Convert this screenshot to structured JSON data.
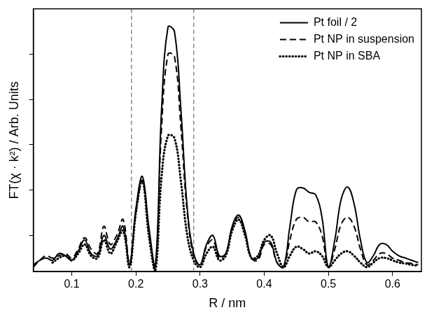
{
  "chart_data": {
    "type": "line",
    "x_label": "R / nm",
    "y_label": "FT(χ · k²) / Arb. Units",
    "xlim": [
      0.04,
      0.645
    ],
    "xticks": [
      0.1,
      0.2,
      0.3,
      0.4,
      0.5,
      0.6
    ],
    "ylim": [
      0.2,
      6
    ],
    "yticks": [
      1,
      2,
      3,
      4,
      5
    ],
    "tick_labels": "x",
    "grid": false,
    "legend": "upper right",
    "vlines": [
      0.193,
      0.29
    ],
    "x": [
      0.04,
      0.05,
      0.06,
      0.07,
      0.08,
      0.09,
      0.1,
      0.11,
      0.12,
      0.13,
      0.14,
      0.15,
      0.16,
      0.17,
      0.18,
      0.19,
      0.2,
      0.21,
      0.22,
      0.23,
      0.24,
      0.25,
      0.26,
      0.27,
      0.28,
      0.29,
      0.3,
      0.31,
      0.32,
      0.33,
      0.34,
      0.35,
      0.36,
      0.37,
      0.38,
      0.39,
      0.4,
      0.41,
      0.42,
      0.43,
      0.44,
      0.45,
      0.46,
      0.47,
      0.48,
      0.49,
      0.5,
      0.51,
      0.52,
      0.53,
      0.54,
      0.55,
      0.56,
      0.57,
      0.58,
      0.59,
      0.6,
      0.61,
      0.62,
      0.63,
      0.64
    ],
    "series": [
      {
        "name": "Pt foil / 2",
        "color": "#000000",
        "line_style": "solid",
        "values": [
          0.35,
          0.45,
          0.5,
          0.45,
          0.6,
          0.55,
          0.45,
          0.65,
          0.9,
          0.6,
          0.55,
          1.0,
          0.7,
          0.9,
          1.2,
          0.35,
          1.6,
          2.3,
          1.2,
          0.3,
          3.8,
          5.6,
          5.5,
          3.8,
          1.6,
          0.6,
          0.35,
          0.8,
          1.0,
          0.55,
          0.6,
          1.2,
          1.45,
          1.1,
          0.5,
          0.5,
          0.85,
          0.85,
          0.4,
          0.3,
          1.2,
          2.0,
          2.05,
          1.95,
          1.9,
          1.4,
          0.3,
          0.9,
          1.8,
          2.07,
          1.7,
          0.9,
          0.4,
          0.55,
          0.8,
          0.8,
          0.65,
          0.55,
          0.5,
          0.45,
          0.4
        ]
      },
      {
        "name": "Pt NP in suspension",
        "color": "#000000",
        "line_style": "dashed",
        "values": [
          0.3,
          0.45,
          0.55,
          0.5,
          0.55,
          0.6,
          0.5,
          0.7,
          0.95,
          0.7,
          0.6,
          1.2,
          0.8,
          1.0,
          1.35,
          0.4,
          1.5,
          2.2,
          1.1,
          0.3,
          3.4,
          5.0,
          4.95,
          3.4,
          1.5,
          0.55,
          0.35,
          0.75,
          0.9,
          0.5,
          0.6,
          1.15,
          1.4,
          1.05,
          0.5,
          0.45,
          0.8,
          0.8,
          0.4,
          0.3,
          0.9,
          1.35,
          1.4,
          1.3,
          1.3,
          1.0,
          0.3,
          0.7,
          1.25,
          1.4,
          1.2,
          0.7,
          0.35,
          0.45,
          0.6,
          0.6,
          0.5,
          0.45,
          0.4,
          0.38,
          0.35
        ]
      },
      {
        "name": "Pt NP in SBA",
        "color": "#000000",
        "line_style": "dotted",
        "values": [
          null,
          null,
          null,
          0.4,
          0.5,
          0.55,
          0.45,
          0.6,
          0.8,
          0.55,
          0.5,
          0.9,
          0.6,
          0.85,
          1.1,
          0.3,
          1.5,
          2.2,
          1.0,
          0.2,
          2.3,
          3.2,
          3.15,
          2.2,
          1.0,
          0.45,
          0.3,
          0.6,
          0.75,
          0.45,
          0.55,
          1.1,
          1.35,
          1.0,
          0.5,
          0.55,
          0.9,
          1.0,
          0.6,
          0.3,
          0.55,
          0.75,
          0.7,
          0.6,
          0.65,
          0.55,
          0.3,
          0.45,
          0.6,
          0.65,
          0.55,
          0.4,
          0.3,
          0.4,
          0.5,
          0.5,
          0.45,
          0.4,
          0.38,
          0.35,
          0.33
        ]
      }
    ]
  }
}
